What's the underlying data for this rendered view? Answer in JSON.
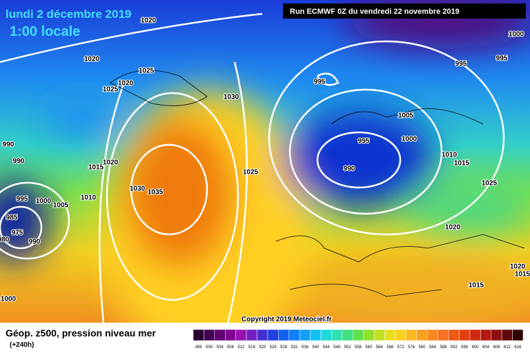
{
  "header": {
    "date": "lundi 2 décembre 2019",
    "time": "1:00 locale",
    "run": "Run ECMWF 0Z du vendredi 22 novembre 2019"
  },
  "copyright": "Copyright 2019 Meteociel.fr",
  "map": {
    "isobar_labels": [
      "1020",
      "1020",
      "1025",
      "1020",
      "1025",
      "1030",
      "995",
      "995",
      "995",
      "1000",
      "1005",
      "995",
      "1000",
      "990",
      "1010",
      "1015",
      "1025",
      "990",
      "990",
      "1015",
      "1020",
      "1030",
      "1035",
      "1025",
      "995",
      "1000",
      "1005",
      "1010",
      "985",
      "975",
      "980",
      "990",
      "1020",
      "1020",
      "1015",
      "1015",
      "1000"
    ]
  },
  "legend": {
    "title": "Géop. z500, pression niveau mer",
    "lead": "(+240h)",
    "labels": [
      "496",
      "500",
      "504",
      "508",
      "512",
      "516",
      "520",
      "524",
      "528",
      "532",
      "536",
      "540",
      "544",
      "548",
      "552",
      "556",
      "560",
      "564",
      "568",
      "572",
      "576",
      "580",
      "584",
      "588",
      "592",
      "596",
      "600",
      "604",
      "608",
      "612",
      "616"
    ]
  }
}
